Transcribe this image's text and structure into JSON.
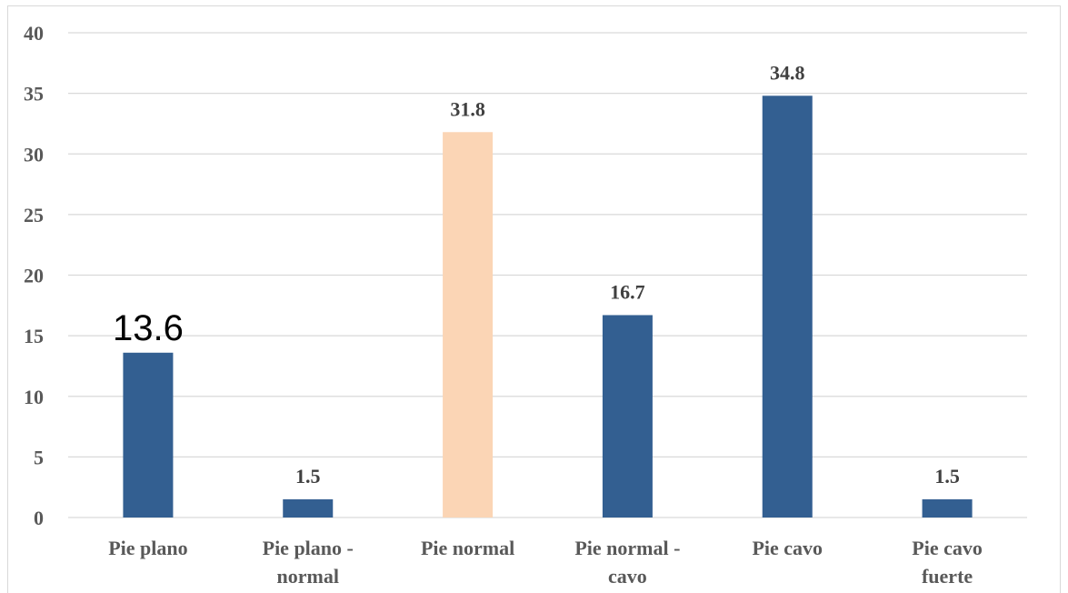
{
  "chart_data": {
    "type": "bar",
    "categories": [
      [
        "Pie plano"
      ],
      [
        "Pie plano -",
        "normal"
      ],
      [
        "Pie normal"
      ],
      [
        "Pie normal -",
        "cavo"
      ],
      [
        "Pie cavo"
      ],
      [
        "Pie cavo",
        "fuerte"
      ]
    ],
    "values": [
      13.6,
      1.5,
      31.8,
      16.7,
      34.8,
      1.5
    ],
    "data_labels": [
      "13.6",
      "1.5",
      "31.8",
      "16.7",
      "34.8",
      "1.5"
    ],
    "colors": [
      "#335f91",
      "#335f91",
      "#fbd5b5",
      "#335f91",
      "#335f91",
      "#335f91"
    ],
    "y_ticks": [
      "0",
      "5",
      "10",
      "15",
      "20",
      "25",
      "30",
      "35",
      "40"
    ],
    "ylim": [
      0,
      40
    ],
    "grid": true,
    "legend": "none"
  }
}
